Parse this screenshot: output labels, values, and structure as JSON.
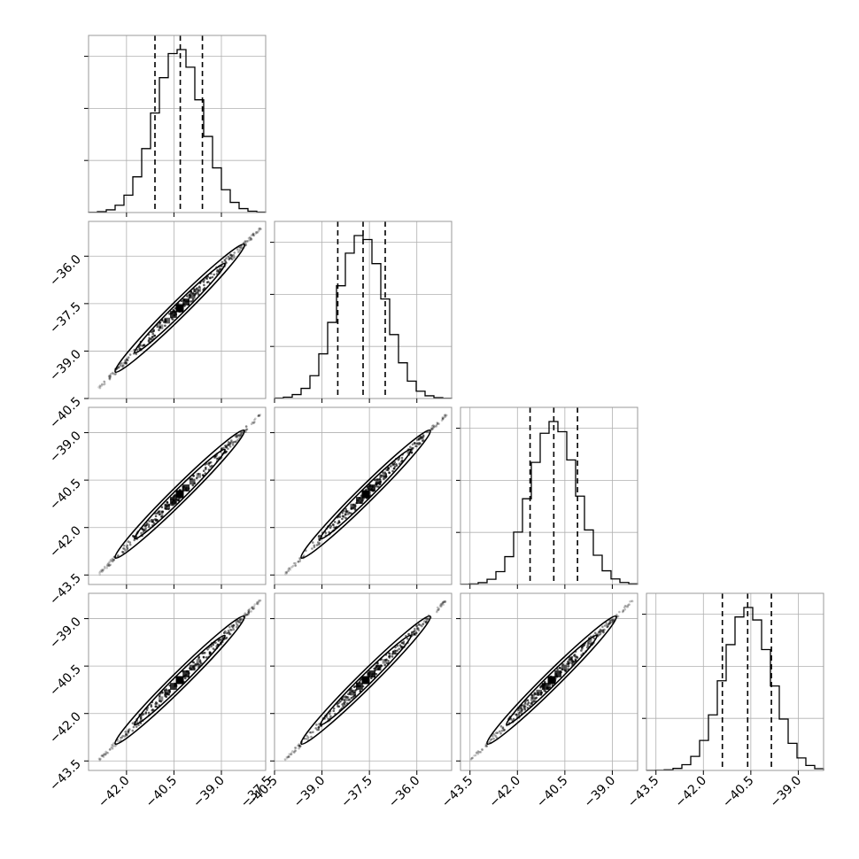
{
  "chart_data": {
    "type": "corner",
    "title": "",
    "parameters": [
      {
        "index": 0,
        "range": [
          -43.2,
          -37.6
        ],
        "ticks": [
          "−42.0",
          "−40.5",
          "−39.0",
          "−37.5"
        ],
        "quantiles": [
          -41.1,
          -40.3,
          -39.6
        ],
        "peak": -40.35,
        "sigma": 0.75
      },
      {
        "index": 1,
        "range": [
          -40.5,
          -34.9
        ],
        "ticks": [
          "−40.5",
          "−39.0",
          "−37.5",
          "−36.0"
        ],
        "quantiles": [
          -38.5,
          -37.7,
          -37.0
        ],
        "peak": -37.75,
        "sigma": 0.75
      },
      {
        "index": 2,
        "range": [
          -43.8,
          -38.2
        ],
        "ticks": [
          "−43.5",
          "−42.0",
          "−40.5",
          "−39.0"
        ],
        "quantiles": [
          -41.6,
          -40.85,
          -40.1
        ],
        "peak": -40.85,
        "sigma": 0.75
      },
      {
        "index": 3,
        "range": [
          -43.8,
          -38.2
        ],
        "ticks": [
          "−43.5",
          "−42.0",
          "−40.5",
          "−39.0"
        ],
        "quantiles": [
          -41.4,
          -40.6,
          -39.85
        ],
        "peak": -40.6,
        "sigma": 0.75
      }
    ],
    "y_ticks_by_row": [
      [],
      [
        "−40.5",
        "−39.0",
        "−37.5",
        "−36.0"
      ],
      [
        "−43.5",
        "−42.0",
        "−40.5",
        "−39.0"
      ],
      [
        "−43.5",
        "−42.0",
        "−40.5",
        "−39.0"
      ]
    ],
    "histogram_bins": 20,
    "grid": true
  }
}
